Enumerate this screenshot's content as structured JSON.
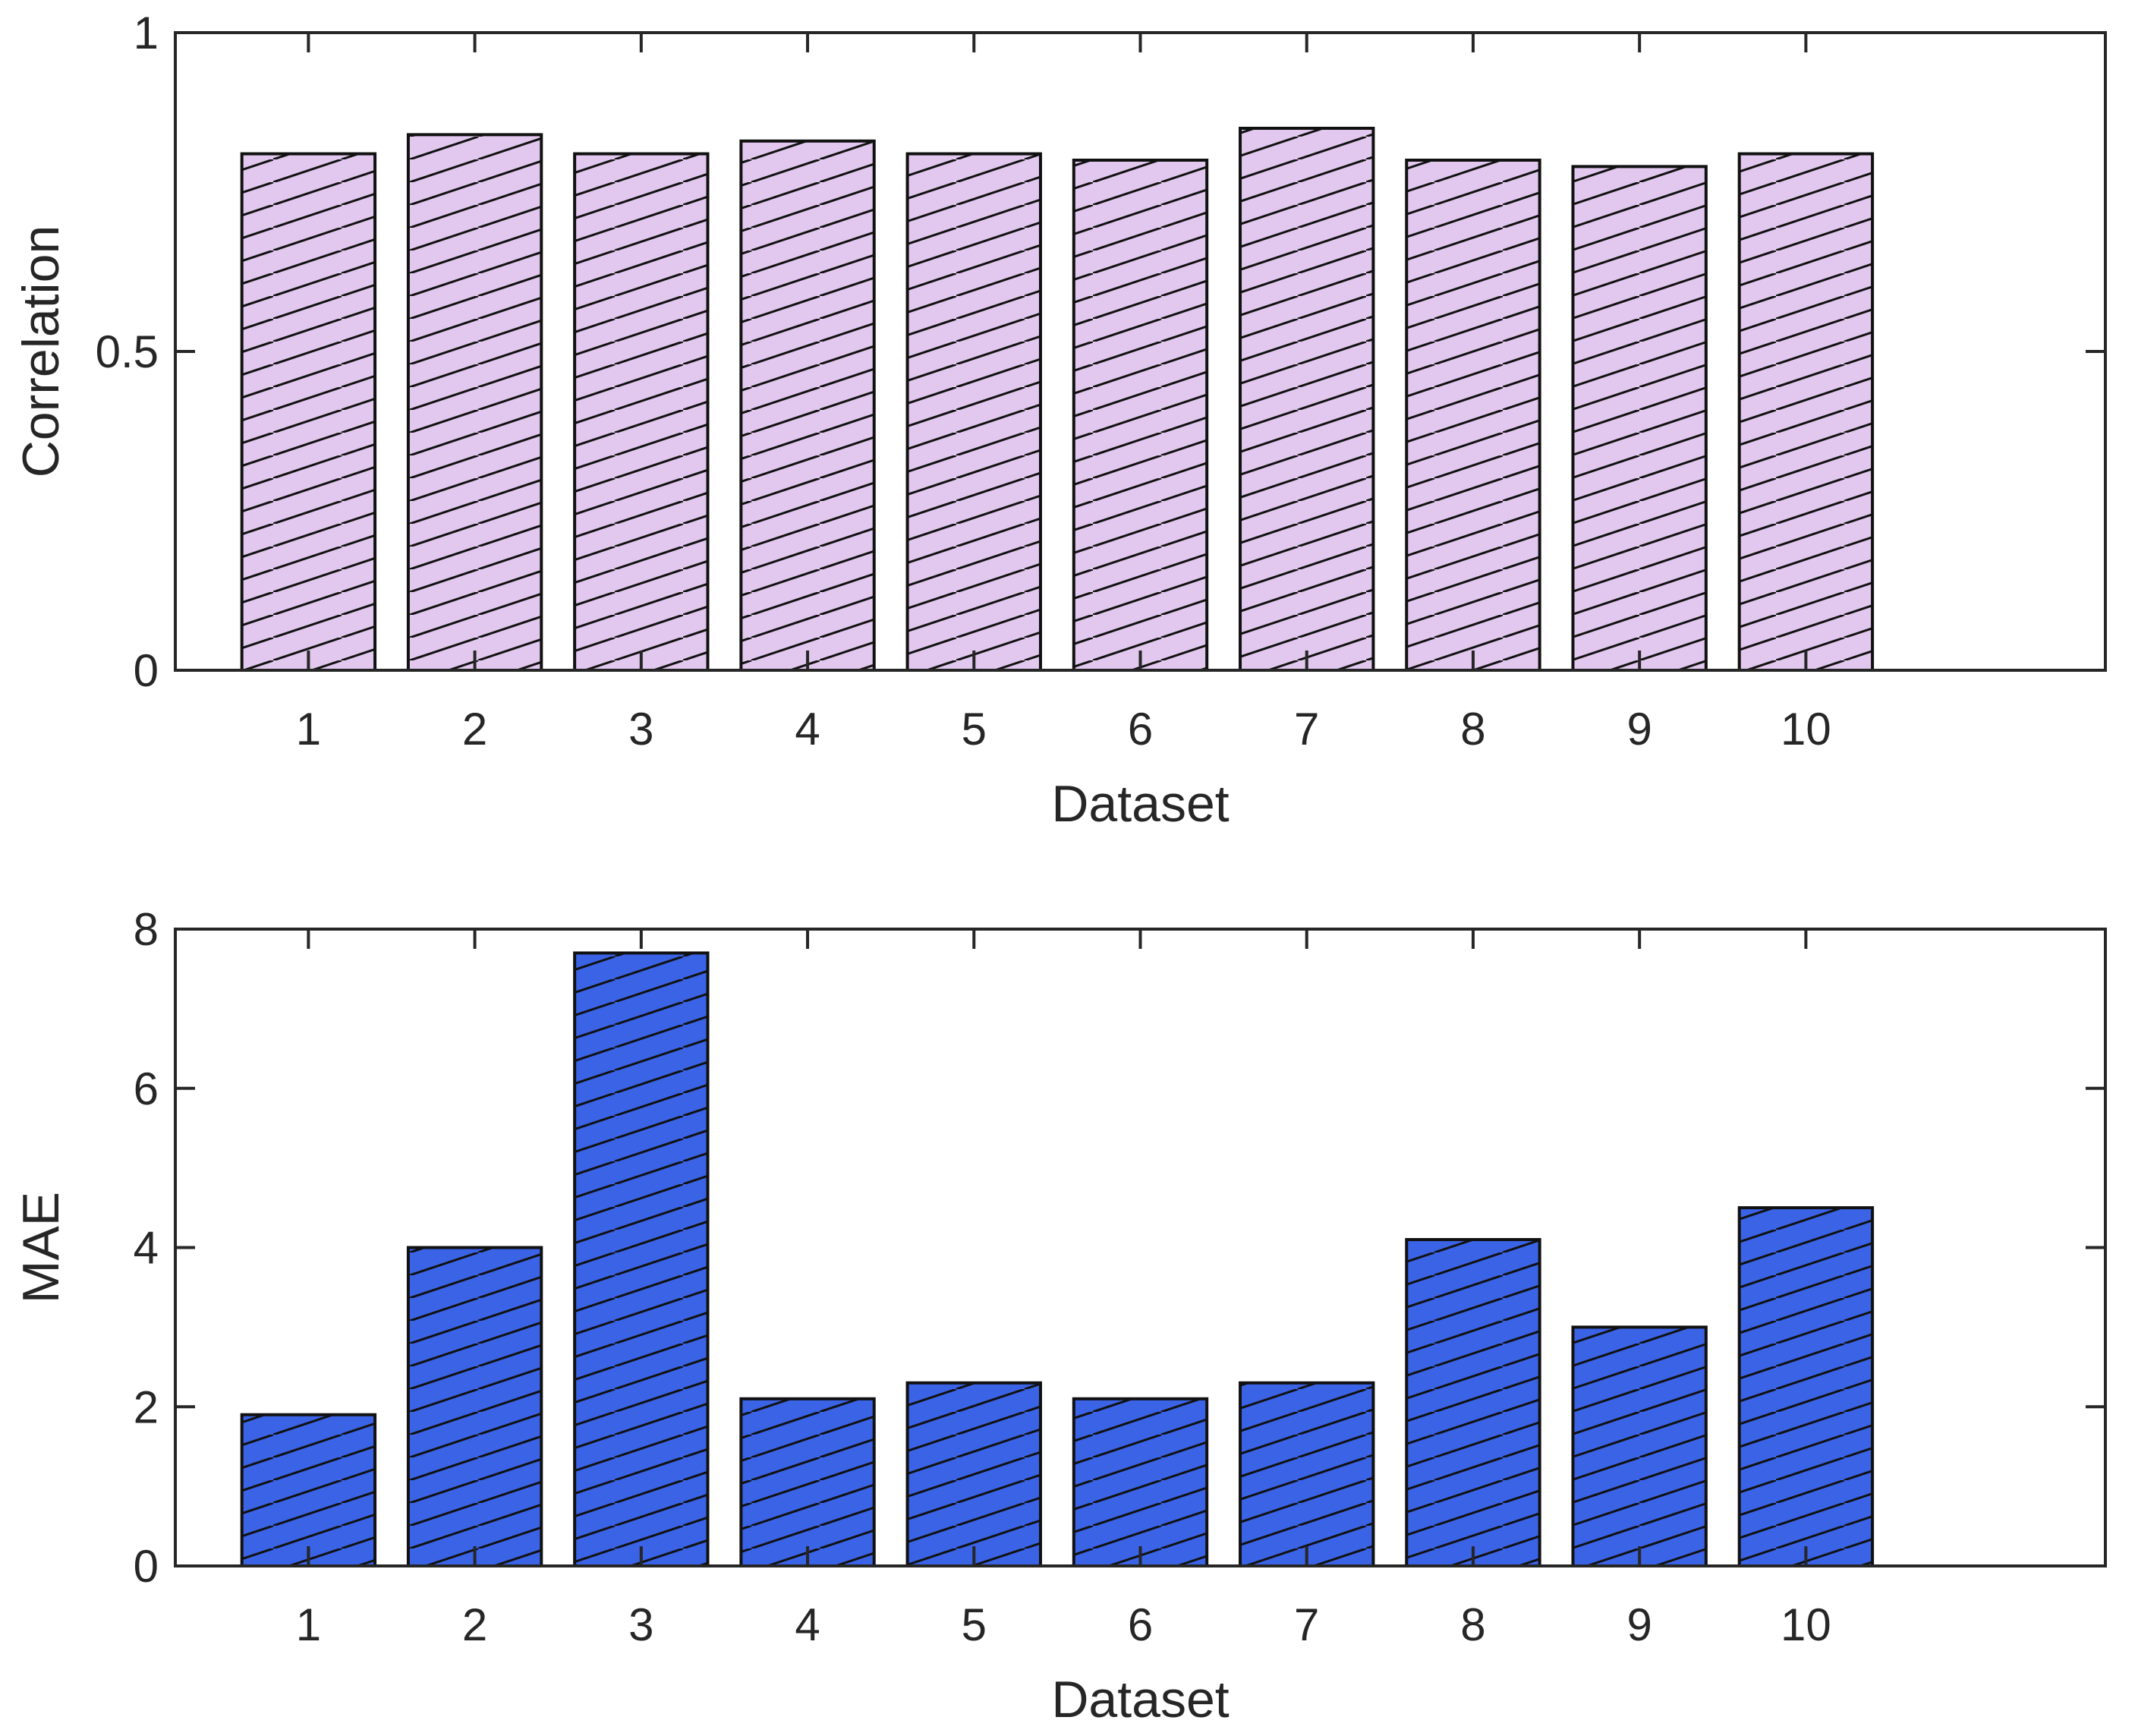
{
  "chart_data": [
    {
      "type": "bar",
      "title": "",
      "xlabel": "Dataset",
      "ylabel": "Correlation",
      "categories": [
        "1",
        "2",
        "3",
        "4",
        "5",
        "6",
        "7",
        "8",
        "9",
        "10"
      ],
      "values": [
        0.81,
        0.84,
        0.81,
        0.83,
        0.81,
        0.8,
        0.85,
        0.8,
        0.79,
        0.81
      ],
      "ylim": [
        0,
        1
      ],
      "xlim": [
        0.2,
        11.8
      ],
      "yticks": [
        0,
        0.5,
        1
      ],
      "ytick_labels": [
        "0",
        "0.5",
        "1"
      ],
      "fill_color": "#e2c8ef",
      "hatch": "diagonal",
      "grid": false
    },
    {
      "type": "bar",
      "title": "",
      "xlabel": "Dataset",
      "ylabel": "MAE",
      "categories": [
        "1",
        "2",
        "3",
        "4",
        "5",
        "6",
        "7",
        "8",
        "9",
        "10"
      ],
      "values": [
        1.9,
        4.0,
        7.7,
        2.1,
        2.3,
        2.1,
        2.3,
        4.1,
        3.0,
        4.5
      ],
      "ylim": [
        0,
        8
      ],
      "xlim": [
        0.2,
        11.8
      ],
      "yticks": [
        0,
        2,
        4,
        6,
        8
      ],
      "ytick_labels": [
        "0",
        "2",
        "4",
        "6",
        "8"
      ],
      "fill_color": "#3a63e6",
      "hatch": "diagonal",
      "grid": false
    }
  ]
}
